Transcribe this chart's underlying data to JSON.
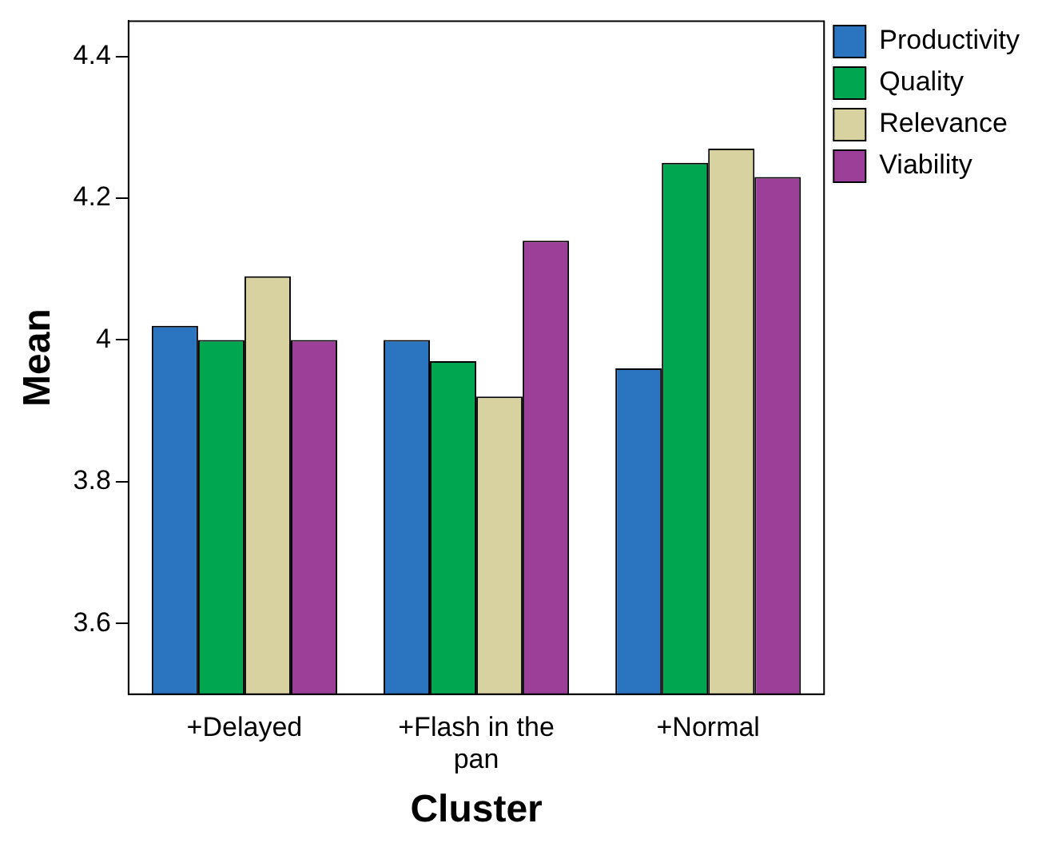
{
  "chart_data": {
    "type": "bar",
    "xlabel": "Cluster",
    "ylabel": "Mean",
    "categories": [
      "+Delayed",
      "+Flash in the pan",
      "+Normal"
    ],
    "series": [
      {
        "name": "Productivity",
        "color": "#2a74c0",
        "values": [
          4.02,
          4.0,
          3.96
        ]
      },
      {
        "name": "Quality",
        "color": "#00a650",
        "values": [
          4.0,
          3.97,
          4.25
        ]
      },
      {
        "name": "Relevance",
        "color": "#d8d2a0",
        "values": [
          4.09,
          3.92,
          4.27
        ]
      },
      {
        "name": "Viability",
        "color": "#9c3f98",
        "values": [
          4.0,
          4.14,
          4.23
        ]
      }
    ],
    "ylim": [
      3.5,
      4.45
    ],
    "yticks": [
      3.6,
      3.8,
      4,
      4.2,
      4.4
    ],
    "grid": false,
    "legend": "top right"
  }
}
